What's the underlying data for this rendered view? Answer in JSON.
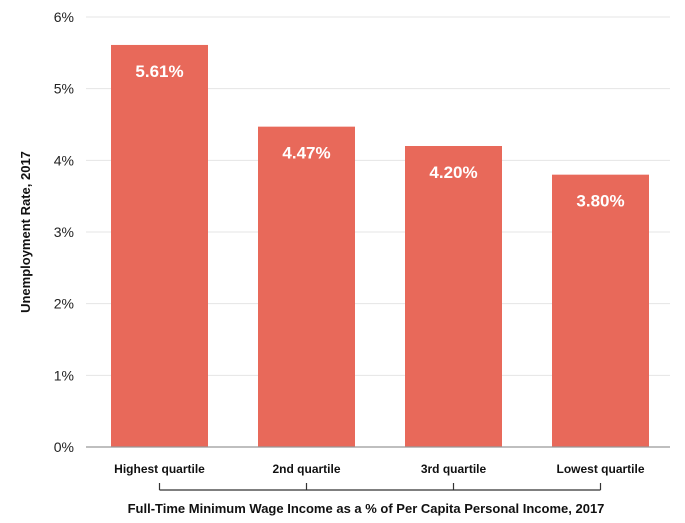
{
  "chart_data": {
    "type": "bar",
    "title": "",
    "categories": [
      "Highest quartile",
      "2nd quartile",
      "3rd quartile",
      "Lowest quartile"
    ],
    "values": [
      5.61,
      4.47,
      4.2,
      3.8
    ],
    "data_labels": [
      "5.61%",
      "4.47%",
      "4.20%",
      "3.80%"
    ],
    "xlabel": "Full-Time Minimum Wage Income as a % of Per Capita Personal Income, 2017",
    "ylabel": "Unemployment Rate, 2017",
    "ylim": [
      0,
      6
    ],
    "yticks": [
      0,
      1,
      2,
      3,
      4,
      5,
      6
    ],
    "ytick_labels": [
      "0%",
      "1%",
      "2%",
      "3%",
      "4%",
      "5%",
      "6%"
    ],
    "grid": true,
    "bar_color": "#E8695A"
  }
}
